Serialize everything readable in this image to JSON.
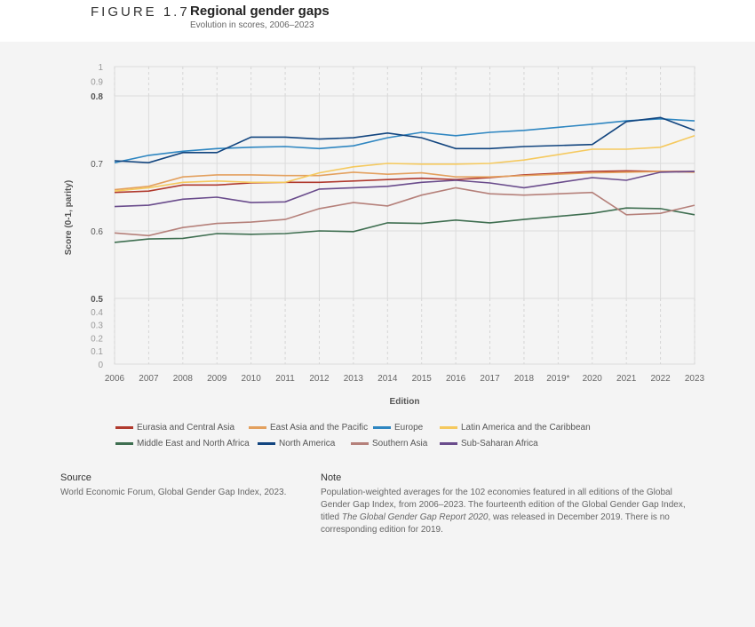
{
  "header": {
    "figure_label": "FIGURE 1.7",
    "title": "Regional gender gaps",
    "subtitle": "Evolution in scores, 2006–2023"
  },
  "chart_data": {
    "type": "line",
    "title": "Regional gender gaps",
    "subtitle": "Evolution in scores, 2006–2023",
    "xlabel": "Edition",
    "ylabel": "Score (0-1, parity)",
    "x": [
      "2006",
      "2007",
      "2008",
      "2009",
      "2010",
      "2011",
      "2012",
      "2013",
      "2014",
      "2015",
      "2016",
      "2017",
      "2018",
      "2019*",
      "2020",
      "2021",
      "2022",
      "2023"
    ],
    "yticks": [
      "0",
      "0.1",
      "0.2",
      "0.3",
      "0.4",
      "0.5",
      "0.6",
      "0.7",
      "0.8",
      "0.9",
      "1"
    ],
    "ylim": [
      0,
      1
    ],
    "y_axis_break": "expanded between 0.5 and 0.8",
    "grid": true,
    "legend_placement": "bottom",
    "series": [
      {
        "name": "Eurasia and Central Asia",
        "color": "#b03a2e",
        "values": [
          0.657,
          0.659,
          0.668,
          0.668,
          0.671,
          0.672,
          0.672,
          0.674,
          0.676,
          0.678,
          0.676,
          0.679,
          0.683,
          null,
          0.688,
          0.689,
          0.688,
          0.688
        ]
      },
      {
        "name": "East Asia and the Pacific",
        "color": "#e3a05e",
        "values": [
          0.661,
          0.666,
          0.68,
          0.683,
          0.683,
          0.682,
          0.682,
          0.687,
          0.684,
          0.686,
          0.68,
          0.68,
          0.682,
          null,
          0.686,
          0.687,
          0.688,
          0.687
        ]
      },
      {
        "name": "Europe",
        "color": "#2e86c1",
        "values": [
          0.701,
          0.712,
          0.718,
          0.722,
          0.724,
          0.725,
          0.722,
          0.726,
          0.738,
          0.746,
          0.741,
          0.746,
          0.749,
          null,
          0.758,
          0.763,
          0.766,
          0.763
        ]
      },
      {
        "name": "Latin America and the Caribbean",
        "color": "#f5c95e",
        "values": [
          0.659,
          0.664,
          0.672,
          0.674,
          0.672,
          0.672,
          0.686,
          0.695,
          0.7,
          0.699,
          0.699,
          0.7,
          0.705,
          null,
          0.721,
          0.721,
          0.724,
          0.741
        ]
      },
      {
        "name": "Middle East and North Africa",
        "color": "#3e6e50",
        "values": [
          0.583,
          0.588,
          0.589,
          0.596,
          0.595,
          0.596,
          0.6,
          0.599,
          0.612,
          0.611,
          0.616,
          0.612,
          0.617,
          null,
          0.626,
          0.634,
          0.633,
          0.624
        ]
      },
      {
        "name": "North America",
        "color": "#12457f",
        "values": [
          0.704,
          0.701,
          0.716,
          0.716,
          0.739,
          0.739,
          0.736,
          0.738,
          0.745,
          0.738,
          0.722,
          0.722,
          0.725,
          null,
          0.728,
          0.762,
          0.768,
          0.749
        ]
      },
      {
        "name": "Southern Asia",
        "color": "#b5807a",
        "values": [
          0.597,
          0.593,
          0.605,
          0.611,
          0.613,
          0.617,
          0.633,
          0.642,
          0.637,
          0.653,
          0.664,
          0.655,
          0.653,
          null,
          0.657,
          0.624,
          0.626,
          0.638
        ]
      },
      {
        "name": "Sub-Saharan Africa",
        "color": "#6a4c8c",
        "values": [
          0.636,
          0.638,
          0.647,
          0.65,
          0.642,
          0.643,
          0.662,
          0.664,
          0.666,
          0.672,
          0.675,
          0.671,
          0.664,
          null,
          0.679,
          0.675,
          0.687,
          0.688
        ]
      }
    ]
  },
  "source": {
    "heading": "Source",
    "text": "World Economic Forum, Global Gender Gap Index, 2023."
  },
  "note": {
    "heading": "Note",
    "text_before": "Population-weighted averages for the 102 economies featured in all editions of the Global Gender Gap Index, from 2006–2023. The fourteenth edition of the Global Gender Gap Index, titled ",
    "text_italic": "The Global Gender Gap Report 2020",
    "text_after": ", was released in December 2019. There is no corresponding edition for 2019."
  }
}
